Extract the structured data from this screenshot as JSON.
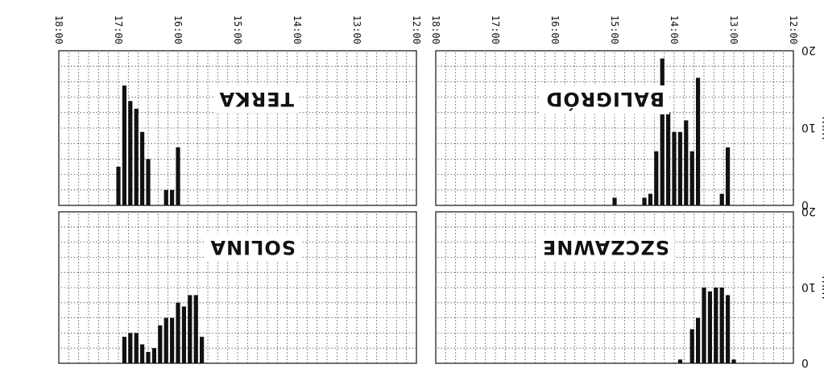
{
  "chart_data": [
    {
      "type": "bar",
      "title": "BALIGRÓD",
      "ylabel": "mm",
      "ylim": [
        0,
        20
      ],
      "yticks": [
        "0",
        "10",
        "20"
      ],
      "xlim_hours": [
        12,
        18
      ],
      "xticks": [
        "12:00",
        "13:00",
        "14:00",
        "15:00",
        "16:00",
        "17:00",
        "18:00"
      ],
      "x": [
        13.1,
        13.2,
        13.6,
        13.7,
        13.8,
        13.9,
        14.0,
        14.1,
        14.2,
        14.3,
        14.4,
        14.5,
        14.6,
        14.7,
        14.8,
        15.0
      ],
      "values": [
        7.5,
        1.5,
        16.5,
        7,
        11,
        9.5,
        9.5,
        12,
        19,
        7,
        1.5,
        1,
        0,
        0,
        0,
        1
      ]
    },
    {
      "type": "bar",
      "title": "TERKA",
      "ylabel": "",
      "ylim": [
        0,
        20
      ],
      "yticks": [],
      "xlim_hours": [
        12,
        18
      ],
      "xticks": [
        "12:00",
        "13:00",
        "14:00",
        "15:00",
        "16:00",
        "17:00",
        "18:00"
      ],
      "x": [
        16.0,
        16.1,
        16.2,
        16.5,
        16.6,
        16.7,
        16.8,
        16.9,
        17.0
      ],
      "values": [
        7.5,
        2,
        2,
        6,
        9.5,
        12.5,
        13.5,
        15.5,
        5
      ]
    },
    {
      "type": "bar",
      "title": "SZCZAWNE",
      "ylabel": "mm",
      "ylim": [
        0,
        20
      ],
      "yticks": [
        "0",
        "10",
        "20"
      ],
      "xlim_hours": [
        12,
        18
      ],
      "xticks": [],
      "x": [
        13.0,
        13.1,
        13.2,
        13.3,
        13.4,
        13.5,
        13.6,
        13.7,
        13.8,
        13.9
      ],
      "values": [
        0.5,
        9,
        10,
        10,
        9.5,
        10,
        6,
        4.5,
        0,
        0.5
      ]
    },
    {
      "type": "bar",
      "title": "SOLINA",
      "ylabel": "",
      "ylim": [
        0,
        20
      ],
      "yticks": [],
      "xlim_hours": [
        12,
        18
      ],
      "xticks": [],
      "x": [
        15.6,
        15.7,
        15.8,
        15.9,
        16.0,
        16.1,
        16.2,
        16.3,
        16.4,
        16.5,
        16.6,
        16.7,
        16.8,
        16.9
      ],
      "values": [
        3.5,
        9,
        9,
        7.5,
        8,
        6,
        6,
        5,
        2,
        1.5,
        2.5,
        4,
        4,
        3.5
      ]
    }
  ]
}
